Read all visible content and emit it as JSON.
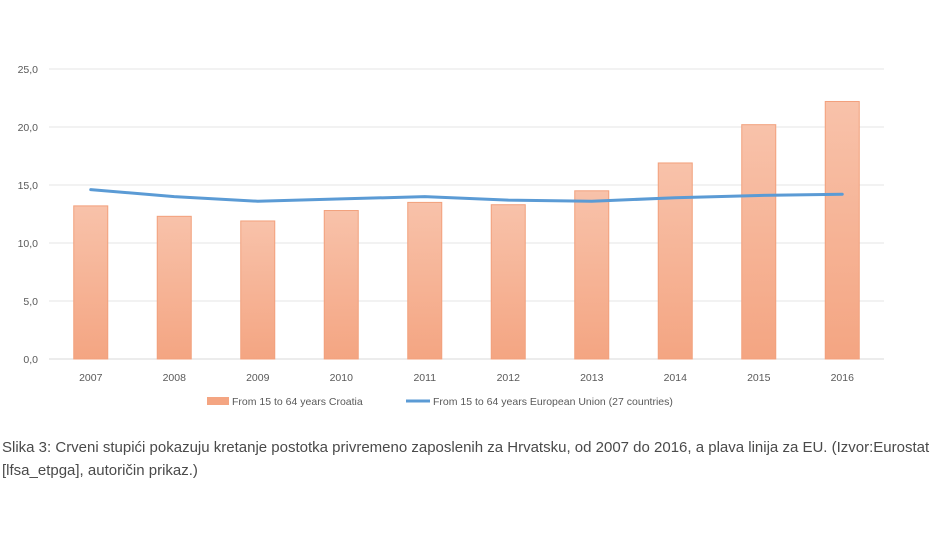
{
  "chart_data": {
    "type": "bar",
    "categories": [
      "2007",
      "2008",
      "2009",
      "2010",
      "2011",
      "2012",
      "2013",
      "2014",
      "2015",
      "2016"
    ],
    "series": [
      {
        "name": "From 15 to 64 years Croatia",
        "kind": "bar",
        "color": "#f4a582",
        "values": [
          13.2,
          12.3,
          11.9,
          12.8,
          13.5,
          13.3,
          14.5,
          16.9,
          20.2,
          22.2
        ]
      },
      {
        "name": "From 15 to 64 years European Union (27 countries)",
        "kind": "line",
        "color": "#5b9bd5",
        "values": [
          14.6,
          14.0,
          13.6,
          13.8,
          14.0,
          13.7,
          13.6,
          13.9,
          14.1,
          14.2
        ]
      }
    ],
    "ylim": [
      0,
      25
    ],
    "yticks": [
      "0,0",
      "5,0",
      "10,0",
      "15,0",
      "20,0",
      "25,0"
    ],
    "ytick_values": [
      0,
      5,
      10,
      15,
      20,
      25
    ],
    "grid": true,
    "legend_position": "bottom"
  },
  "caption": "Slika 3: Crveni stupići pokazuju kretanje postotka privremeno zaposlenih za Hrvatsku, od 2007 do 2016, a plava linija za EU. (Izvor:Eurostat [lfsa_etpga], autoričin prikaz.)"
}
